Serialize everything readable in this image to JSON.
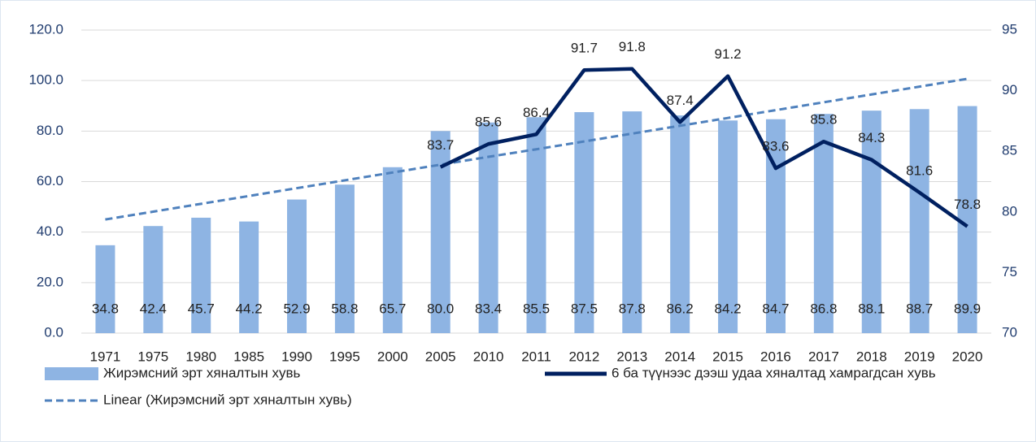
{
  "chart_data": {
    "type": "combo",
    "categories": [
      "1971",
      "1975",
      "1980",
      "1985",
      "1990",
      "1995",
      "2000",
      "2005",
      "2010",
      "2011",
      "2012",
      "2013",
      "2014",
      "2015",
      "2016",
      "2017",
      "2018",
      "2019",
      "2020"
    ],
    "series": [
      {
        "name": "Жирэмсний эрт хяналтын хувь",
        "type": "bar",
        "color": "#8eb4e3",
        "values": [
          34.8,
          42.4,
          45.7,
          44.2,
          52.9,
          58.8,
          65.7,
          80.0,
          83.4,
          85.5,
          87.5,
          87.8,
          86.2,
          84.2,
          84.7,
          86.8,
          88.1,
          88.7,
          89.9
        ],
        "value_labels": [
          "34.8",
          "42.4",
          "45.7",
          "44.2",
          "52.9",
          "58.8",
          "65.7",
          "80.0",
          "83.4",
          "85.5",
          "87.5",
          "87.8",
          "86.2",
          "84.2",
          "84.7",
          "86.8",
          "88.1",
          "88.7",
          "89.9"
        ]
      },
      {
        "name": "6 ба түүнээс дээш удаа хяналтад хамрагдсан хувь",
        "type": "line",
        "axis": "y2",
        "color": "#002060",
        "values": [
          null,
          null,
          null,
          null,
          null,
          null,
          null,
          83.7,
          85.6,
          86.4,
          91.7,
          91.8,
          87.4,
          91.2,
          83.6,
          85.8,
          84.3,
          81.6,
          78.8
        ]
      },
      {
        "name": "Linear (Жирэмсний эрт хяналтын хувь)",
        "type": "trend",
        "color": "#4f81bd",
        "values": [
          45.0,
          48.1,
          51.2,
          54.3,
          57.4,
          60.5,
          63.6,
          66.7,
          69.8,
          72.8,
          75.9,
          79.0,
          82.1,
          85.2,
          88.3,
          91.4,
          94.5,
          97.6,
          100.7
        ]
      }
    ],
    "ylim": [
      0,
      120
    ],
    "yticks": [
      {
        "value": 0,
        "label": "0.0"
      },
      {
        "value": 20,
        "label": "20.0"
      },
      {
        "value": 40,
        "label": "40.0"
      },
      {
        "value": 60,
        "label": "60.0"
      },
      {
        "value": 80,
        "label": "80.0"
      },
      {
        "value": 100,
        "label": "100.0"
      },
      {
        "value": 120,
        "label": "120.0"
      }
    ],
    "y2lim": [
      70,
      95
    ],
    "y2ticks": [
      70,
      75,
      80,
      85,
      90,
      95
    ],
    "grid": true,
    "legend": "bottom"
  }
}
